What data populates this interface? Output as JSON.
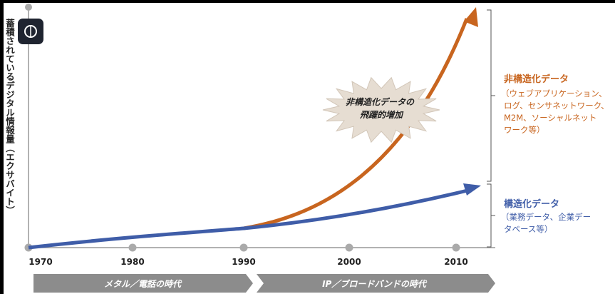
{
  "y_axis_label": "蓄積されているデジタル情報量（エクサバイト）",
  "x_axis": {
    "labels": [
      "1970",
      "1980",
      "1990",
      "2000",
      "2010"
    ]
  },
  "periods": [
    "メタル／電話の時代",
    "IP／ブロードバンドの時代"
  ],
  "burst": {
    "lines": [
      "非構造化データの",
      "飛躍的増加"
    ]
  },
  "unstructured": {
    "title": "非構造化データ",
    "lines": [
      "（ウェブアプリケーション、",
      "ログ、センサネットワーク、",
      "M2M、ソーシャルネット",
      "ワーク等）"
    ]
  },
  "structured": {
    "title": "構造化データ",
    "lines": [
      "（業務データ、企業デー",
      "タベース等）"
    ]
  }
}
